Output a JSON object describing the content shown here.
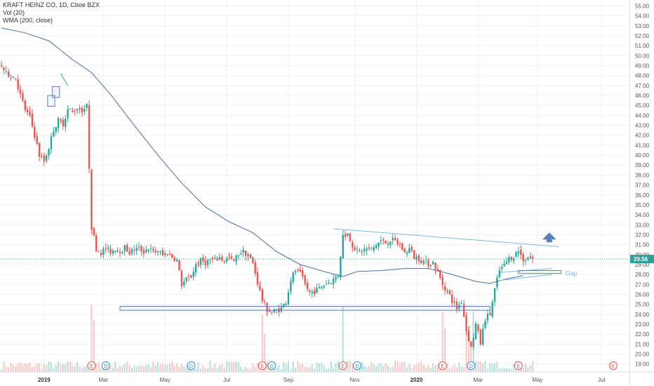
{
  "legend": {
    "symbol_line": "KRAFT HEINZ CO, 1D, Cboe BZX",
    "volume_line": "Vol (20)",
    "wma_line": "WMA (200, close)"
  },
  "price_tag": {
    "value": "29.56",
    "color": "#26a69a"
  },
  "gap_label": "Gap",
  "colors": {
    "up": "#26a69a",
    "down": "#ef5350",
    "wma": "#4a6fa5",
    "trendline": "#7ab8e8",
    "box": "#5b7fb9",
    "arrow": "#5b7fb9",
    "grid": "#eef0f3",
    "volume_up": "#b2dfdb",
    "volume_down": "#f8c7c5"
  },
  "chart_data": {
    "type": "candlestick",
    "title": "KRAFT HEINZ CO, 1D, Cboe BZX",
    "indicators": [
      "Vol (20)",
      "WMA (200, close)"
    ],
    "y_ticks": [
      "55.00",
      "54.00",
      "53.00",
      "52.00",
      "51.00",
      "50.00",
      "49.00",
      "48.00",
      "47.00",
      "46.00",
      "45.00",
      "44.00",
      "43.00",
      "42.00",
      "41.00",
      "40.00",
      "39.00",
      "38.00",
      "37.00",
      "36.00",
      "35.00",
      "34.00",
      "33.00",
      "32.00",
      "31.00",
      "30.00",
      "29.00",
      "28.00",
      "27.00",
      "26.00",
      "25.00",
      "24.00",
      "23.00",
      "22.00",
      "21.00",
      "20.00",
      "19.00"
    ],
    "x_ticks": [
      {
        "label": "2019",
        "bold": true
      },
      {
        "label": "Mar",
        "bold": false
      },
      {
        "label": "May",
        "bold": false
      },
      {
        "label": "Jul",
        "bold": false
      },
      {
        "label": "Sep",
        "bold": false
      },
      {
        "label": "Nov",
        "bold": false
      },
      {
        "label": "2020",
        "bold": true
      },
      {
        "label": "Mar",
        "bold": false
      },
      {
        "label": "May",
        "bold": false
      },
      {
        "label": "Jul",
        "bold": false
      }
    ],
    "ylim": [
      18.2,
      55.6
    ],
    "last_price": 29.56,
    "price_path": [
      [
        0,
        49.0
      ],
      [
        2,
        48.2
      ],
      [
        4,
        48.0
      ],
      [
        6,
        47.8
      ],
      [
        8,
        46.0
      ],
      [
        10,
        44.6
      ],
      [
        12,
        43.8
      ],
      [
        14,
        42.0
      ],
      [
        16,
        40.0
      ],
      [
        18,
        39.4
      ],
      [
        20,
        40.8
      ],
      [
        22,
        42.6
      ],
      [
        24,
        43.5
      ],
      [
        26,
        43.2
      ],
      [
        28,
        44.6
      ],
      [
        30,
        44.3
      ],
      [
        32,
        44.8
      ],
      [
        34,
        44.5
      ],
      [
        36,
        44.9
      ],
      [
        38,
        32.8
      ],
      [
        40,
        30.6
      ],
      [
        42,
        30.2
      ],
      [
        44,
        30.6
      ],
      [
        46,
        30.3
      ],
      [
        48,
        30.6
      ],
      [
        50,
        30.4
      ],
      [
        52,
        30.7
      ],
      [
        54,
        30.2
      ],
      [
        56,
        30.5
      ],
      [
        58,
        30.6
      ],
      [
        60,
        30.3
      ],
      [
        62,
        30.7
      ],
      [
        64,
        30.2
      ],
      [
        66,
        30.4
      ],
      [
        68,
        29.9
      ],
      [
        70,
        30.2
      ],
      [
        72,
        29.8
      ],
      [
        74,
        29.4
      ],
      [
        76,
        27.0
      ],
      [
        78,
        27.5
      ],
      [
        80,
        27.8
      ],
      [
        82,
        29.0
      ],
      [
        84,
        29.4
      ],
      [
        86,
        29.2
      ],
      [
        88,
        29.5
      ],
      [
        90,
        29.4
      ],
      [
        92,
        29.7
      ],
      [
        94,
        29.4
      ],
      [
        96,
        29.6
      ],
      [
        98,
        29.3
      ],
      [
        100,
        30.1
      ],
      [
        102,
        30.3
      ],
      [
        104,
        30.0
      ],
      [
        106,
        29.1
      ],
      [
        108,
        27.2
      ],
      [
        110,
        25.4
      ],
      [
        112,
        24.5
      ],
      [
        114,
        24.2
      ],
      [
        116,
        24.4
      ],
      [
        118,
        24.6
      ],
      [
        120,
        25.3
      ],
      [
        122,
        27.5
      ],
      [
        124,
        28.4
      ],
      [
        126,
        28.0
      ],
      [
        128,
        27.0
      ],
      [
        130,
        26.2
      ],
      [
        132,
        26.3
      ],
      [
        134,
        26.6
      ],
      [
        136,
        27.0
      ],
      [
        138,
        27.2
      ],
      [
        140,
        27.5
      ],
      [
        142,
        28.0
      ],
      [
        144,
        31.9
      ],
      [
        146,
        32.1
      ],
      [
        148,
        31.0
      ],
      [
        150,
        30.3
      ],
      [
        152,
        30.4
      ],
      [
        154,
        30.6
      ],
      [
        156,
        30.4
      ],
      [
        158,
        31.0
      ],
      [
        160,
        31.4
      ],
      [
        162,
        31.2
      ],
      [
        164,
        31.5
      ],
      [
        166,
        31.3
      ],
      [
        168,
        31.0
      ],
      [
        170,
        30.1
      ],
      [
        172,
        30.6
      ],
      [
        174,
        29.8
      ],
      [
        176,
        29.6
      ],
      [
        178,
        29.3
      ],
      [
        180,
        29.1
      ],
      [
        182,
        29.2
      ],
      [
        184,
        28.2
      ],
      [
        186,
        27.0
      ],
      [
        188,
        26.3
      ],
      [
        190,
        25.4
      ],
      [
        192,
        24.6
      ],
      [
        194,
        25.3
      ],
      [
        196,
        22.4
      ],
      [
        198,
        20.6
      ],
      [
        200,
        23.0
      ],
      [
        202,
        21.1
      ],
      [
        204,
        23.6
      ],
      [
        206,
        24.0
      ],
      [
        208,
        26.5
      ],
      [
        210,
        28.4
      ],
      [
        212,
        28.9
      ],
      [
        214,
        29.6
      ],
      [
        216,
        29.9
      ],
      [
        218,
        30.4
      ],
      [
        220,
        29.5
      ],
      [
        222,
        29.8
      ],
      [
        224,
        29.56
      ]
    ],
    "candle_index_range": [
      0,
      224
    ],
    "wma_points": [
      [
        0,
        52.8
      ],
      [
        10,
        52.3
      ],
      [
        20,
        51.5
      ],
      [
        30,
        49.6
      ],
      [
        38,
        48.3
      ],
      [
        46,
        46.1
      ],
      [
        56,
        43.0
      ],
      [
        66,
        40.0
      ],
      [
        76,
        37.2
      ],
      [
        86,
        34.8
      ],
      [
        96,
        33.3
      ],
      [
        106,
        32.2
      ],
      [
        116,
        30.3
      ],
      [
        126,
        29.0
      ],
      [
        136,
        28.3
      ],
      [
        144,
        27.8
      ],
      [
        150,
        28.3
      ],
      [
        160,
        28.4
      ],
      [
        170,
        28.6
      ],
      [
        180,
        28.6
      ],
      [
        190,
        28.0
      ],
      [
        200,
        27.3
      ],
      [
        206,
        27.1
      ],
      [
        212,
        27.5
      ],
      [
        220,
        27.9
      ]
    ],
    "trendlines": [
      {
        "from": [
          140,
          32.6
        ],
        "to": [
          235,
          30.8
        ]
      },
      {
        "from": [
          210,
          28.2
        ],
        "to": [
          232,
          28.6
        ]
      },
      {
        "from": [
          210,
          27.4
        ],
        "to": [
          232,
          28.0
        ]
      }
    ],
    "support_box": {
      "from": [
        50,
        24.4
      ],
      "to": [
        206,
        24.8
      ]
    },
    "gap_box": {
      "from": [
        218,
        28.1
      ],
      "to": [
        236,
        28.4
      ]
    },
    "pattern_boxes": [
      {
        "from": [
          19.5,
          44.9
        ],
        "to": [
          22.5,
          46.0
        ]
      },
      {
        "from": [
          21.5,
          45.8
        ],
        "to": [
          24.5,
          46.9
        ]
      }
    ],
    "arrow": {
      "at": [
        231,
        31.8
      ]
    },
    "small_line": {
      "from": [
        25,
        48.2
      ],
      "to": [
        28,
        47.0
      ]
    },
    "event_markers": [
      {
        "x": 38,
        "label": "E",
        "kind": "earnings"
      },
      {
        "x": 44,
        "label": "D",
        "kind": "dividend"
      },
      {
        "x": 80,
        "label": "D",
        "kind": "dividend"
      },
      {
        "x": 110,
        "label": "E",
        "kind": "earnings"
      },
      {
        "x": 114,
        "label": "D",
        "kind": "dividend"
      },
      {
        "x": 144,
        "label": "E",
        "kind": "earnings"
      },
      {
        "x": 150,
        "label": "D",
        "kind": "dividend"
      },
      {
        "x": 186,
        "label": "E",
        "kind": "earnings"
      },
      {
        "x": 198,
        "label": "D",
        "kind": "dividend"
      },
      {
        "x": 218,
        "label": "E",
        "kind": "earnings"
      },
      {
        "x": 258,
        "label": "E",
        "kind": "earnings"
      }
    ]
  }
}
